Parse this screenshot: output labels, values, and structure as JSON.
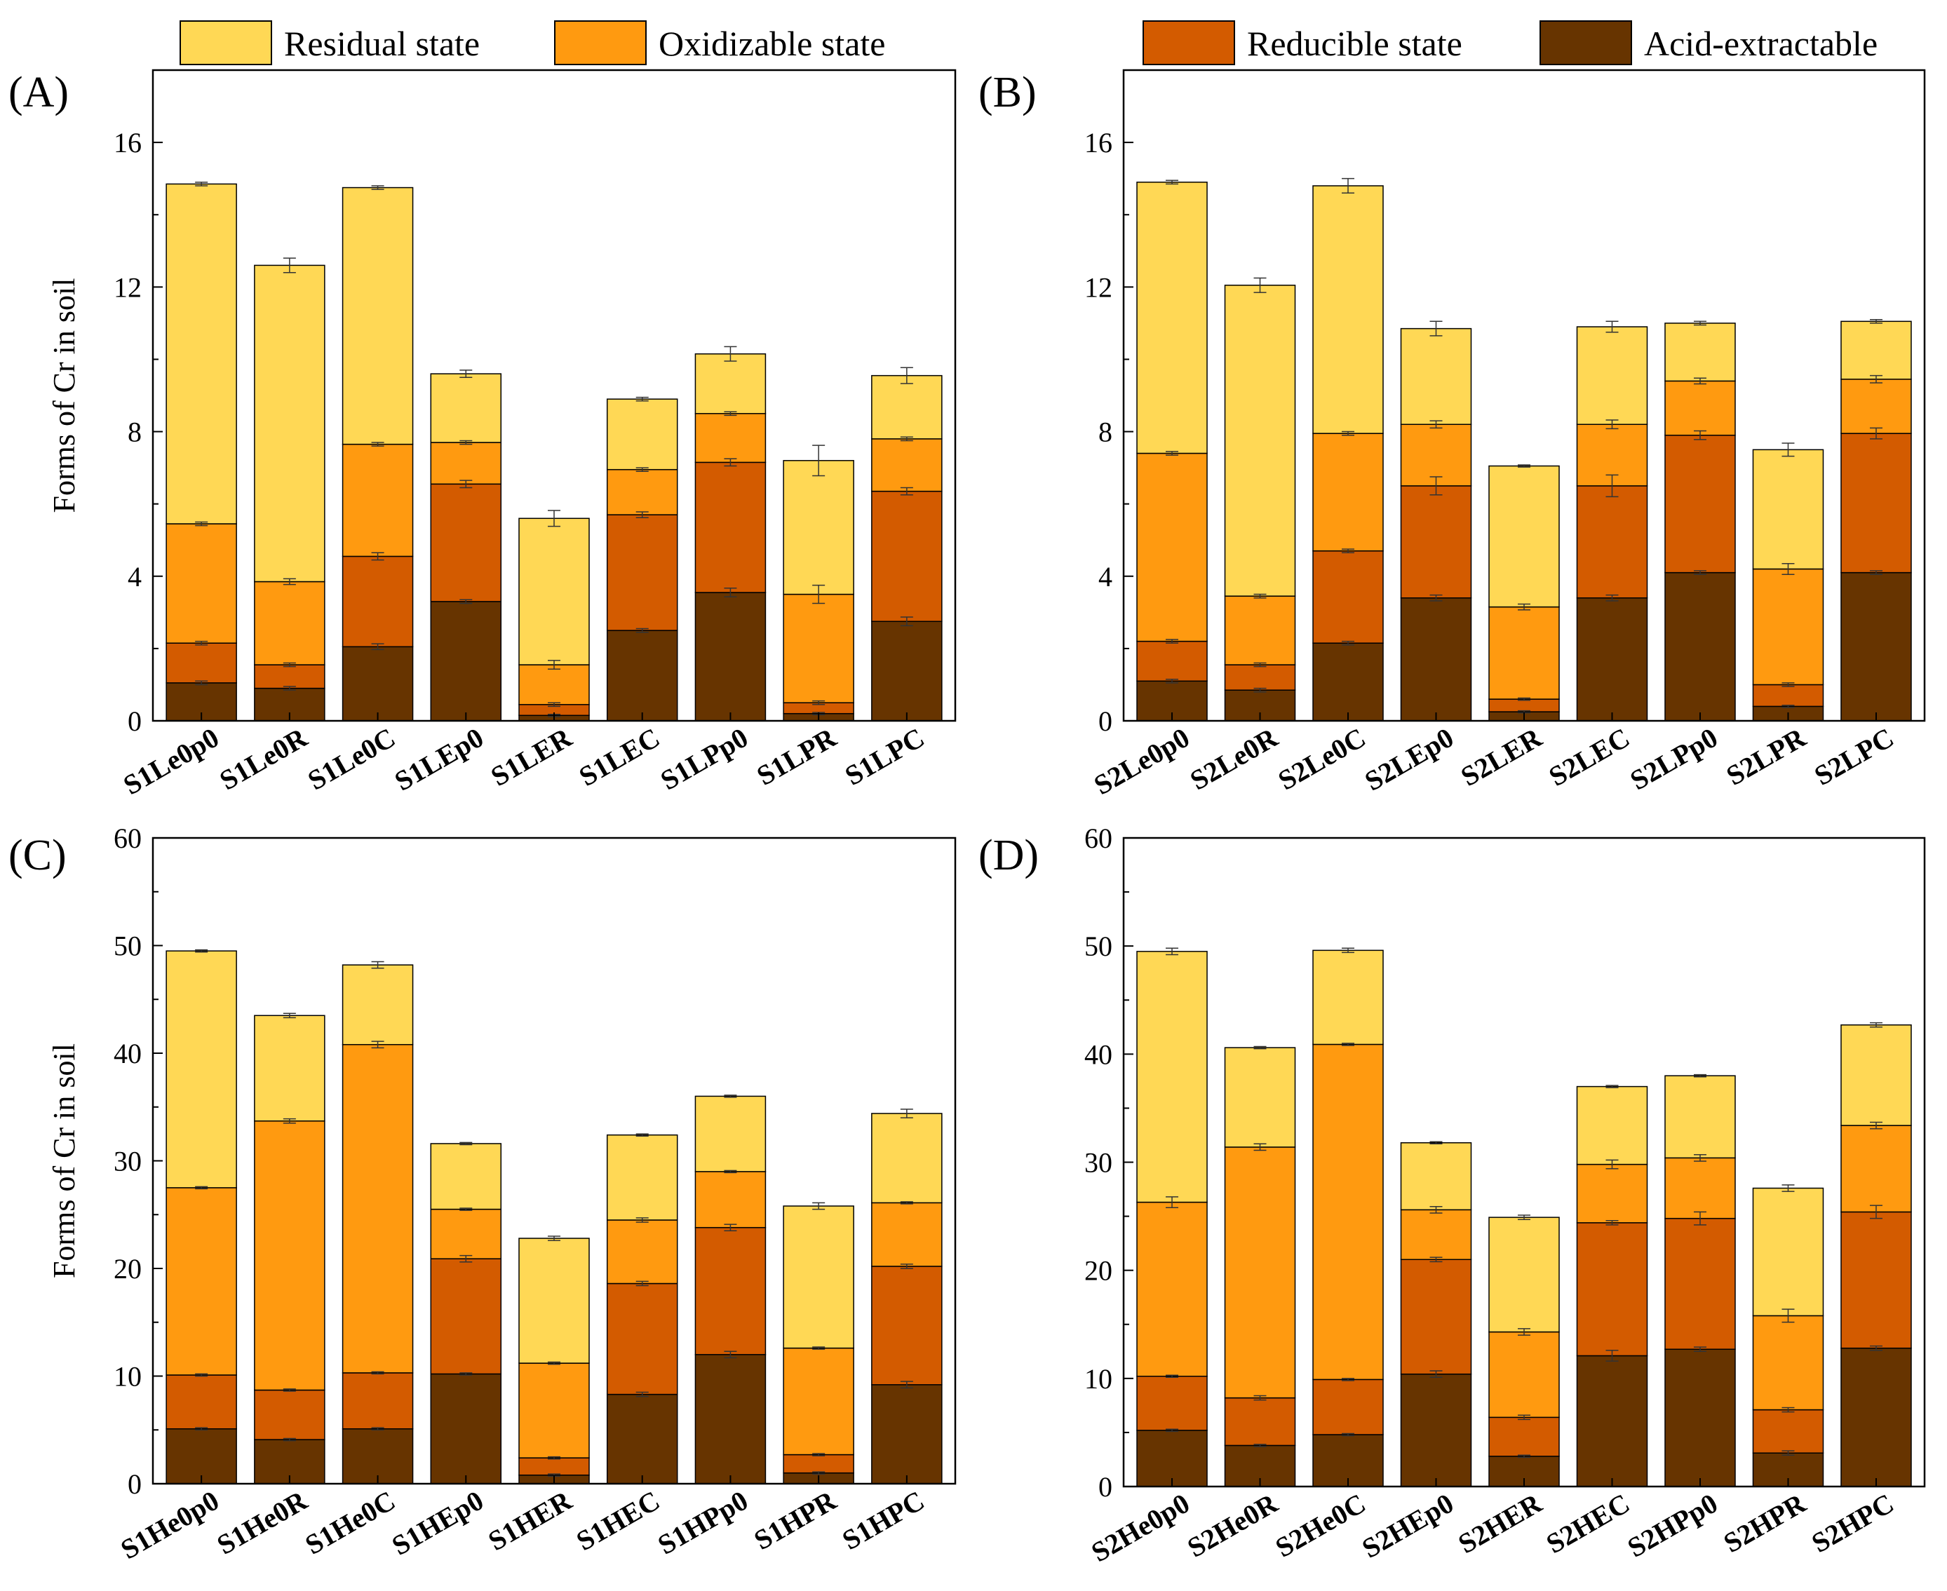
{
  "legend": {
    "items": [
      {
        "label": "Residual state",
        "color": "#FFD855"
      },
      {
        "label": "Oxidizable state",
        "color": "#FF9A10"
      },
      {
        "label": "Reducible state",
        "color": "#D35B00"
      },
      {
        "label": "Acid-extractable",
        "color": "#673400"
      }
    ]
  },
  "chart_data": [
    {
      "type": "bar",
      "stacked": true,
      "panel_label": "(A)",
      "ylabel": "Forms of Cr in soil",
      "ylim": [
        0,
        18
      ],
      "yticks": [
        0,
        4,
        8,
        12,
        16
      ],
      "categories": [
        "S1Le0p0",
        "S1Le0R",
        "S1Le0C",
        "S1LEp0",
        "S1LER",
        "S1LEC",
        "S1LPp0",
        "S1LPR",
        "S1LPC"
      ],
      "series": [
        {
          "name": "Acid-extractable",
          "values": [
            1.05,
            0.9,
            2.05,
            3.3,
            0.15,
            2.5,
            3.55,
            0.2,
            2.75
          ],
          "errors": [
            0.05,
            0.05,
            0.08,
            0.05,
            0.03,
            0.05,
            0.12,
            0.03,
            0.12
          ]
        },
        {
          "name": "Reducible state",
          "values": [
            1.1,
            0.65,
            2.5,
            3.25,
            0.3,
            3.2,
            3.6,
            0.3,
            3.6
          ],
          "errors": [
            0.05,
            0.05,
            0.1,
            0.1,
            0.05,
            0.08,
            0.1,
            0.05,
            0.1
          ]
        },
        {
          "name": "Oxidizable state",
          "values": [
            3.3,
            2.3,
            3.1,
            1.15,
            1.1,
            1.25,
            1.35,
            3.0,
            1.45
          ],
          "errors": [
            0.05,
            0.08,
            0.05,
            0.05,
            0.12,
            0.05,
            0.05,
            0.25,
            0.05
          ]
        },
        {
          "name": "Residual state",
          "values": [
            9.4,
            8.75,
            7.1,
            1.9,
            4.05,
            1.95,
            1.65,
            3.7,
            1.75
          ],
          "errors": [
            0.05,
            0.2,
            0.05,
            0.1,
            0.22,
            0.05,
            0.2,
            0.42,
            0.22
          ]
        }
      ]
    },
    {
      "type": "bar",
      "stacked": true,
      "panel_label": "(B)",
      "ylabel": "",
      "ylim": [
        0,
        18
      ],
      "yticks": [
        0,
        4,
        8,
        12,
        16
      ],
      "categories": [
        "S2Le0p0",
        "S2Le0R",
        "S2Le0C",
        "S2LEp0",
        "S2LER",
        "S2LEC",
        "S2LPp0",
        "S2LPR",
        "S2LPC"
      ],
      "series": [
        {
          "name": "Acid-extractable",
          "values": [
            1.1,
            0.85,
            2.15,
            3.4,
            0.25,
            3.4,
            4.1,
            0.4,
            4.1
          ],
          "errors": [
            0.05,
            0.05,
            0.05,
            0.08,
            0.03,
            0.08,
            0.05,
            0.03,
            0.05
          ]
        },
        {
          "name": "Reducible state",
          "values": [
            1.1,
            0.7,
            2.55,
            3.1,
            0.35,
            3.1,
            3.8,
            0.6,
            3.85
          ],
          "errors": [
            0.05,
            0.05,
            0.05,
            0.25,
            0.03,
            0.3,
            0.12,
            0.05,
            0.15
          ]
        },
        {
          "name": "Oxidizable state",
          "values": [
            5.2,
            1.9,
            3.25,
            1.7,
            2.55,
            1.7,
            1.5,
            3.2,
            1.5
          ],
          "errors": [
            0.05,
            0.05,
            0.05,
            0.1,
            0.08,
            0.12,
            0.08,
            0.15,
            0.1
          ]
        },
        {
          "name": "Residual state",
          "values": [
            7.5,
            8.6,
            6.85,
            2.65,
            3.9,
            2.7,
            1.6,
            3.3,
            1.6
          ],
          "errors": [
            0.05,
            0.2,
            0.2,
            0.2,
            0.03,
            0.15,
            0.05,
            0.18,
            0.05
          ]
        }
      ]
    },
    {
      "type": "bar",
      "stacked": true,
      "panel_label": "(C)",
      "ylabel": "Forms of Cr in soil",
      "ylim": [
        0,
        60
      ],
      "yticks": [
        0,
        10,
        20,
        30,
        40,
        50,
        60
      ],
      "categories": [
        "S1He0p0",
        "S1He0R",
        "S1He0C",
        "S1HEp0",
        "S1HER",
        "S1HEC",
        "S1HPp0",
        "S1HPR",
        "S1HPC"
      ],
      "series": [
        {
          "name": "Acid-extractable",
          "values": [
            5.1,
            4.1,
            5.1,
            10.2,
            0.8,
            8.3,
            12.0,
            1.0,
            9.2
          ],
          "errors": [
            0.1,
            0.1,
            0.1,
            0.1,
            0.1,
            0.2,
            0.3,
            0.1,
            0.3
          ]
        },
        {
          "name": "Reducible state",
          "values": [
            5.0,
            4.6,
            5.2,
            10.7,
            1.6,
            10.3,
            11.8,
            1.7,
            11.0
          ],
          "errors": [
            0.1,
            0.1,
            0.1,
            0.3,
            0.1,
            0.2,
            0.3,
            0.1,
            0.2
          ]
        },
        {
          "name": "Oxidizable state",
          "values": [
            17.4,
            25.0,
            30.5,
            4.6,
            8.8,
            5.9,
            5.2,
            9.9,
            5.9
          ],
          "errors": [
            0.1,
            0.2,
            0.3,
            0.1,
            0.1,
            0.2,
            0.1,
            0.1,
            0.1
          ]
        },
        {
          "name": "Residual state",
          "values": [
            22.0,
            9.8,
            7.4,
            6.1,
            11.6,
            7.9,
            7.0,
            13.2,
            8.3
          ],
          "errors": [
            0.1,
            0.2,
            0.3,
            0.1,
            0.2,
            0.1,
            0.1,
            0.3,
            0.4
          ]
        }
      ]
    },
    {
      "type": "bar",
      "stacked": true,
      "panel_label": "(D)",
      "ylabel": "",
      "ylim": [
        0,
        60
      ],
      "yticks": [
        0,
        10,
        20,
        30,
        40,
        50,
        60
      ],
      "categories": [
        "S2He0p0",
        "S2He0R",
        "S2He0C",
        "S2HEp0",
        "S2HER",
        "S2HEC",
        "S2HPp0",
        "S2HPR",
        "S2HPC"
      ],
      "series": [
        {
          "name": "Acid-extractable",
          "values": [
            5.2,
            3.8,
            4.8,
            10.4,
            2.8,
            12.1,
            12.7,
            3.1,
            12.8
          ],
          "errors": [
            0.1,
            0.1,
            0.1,
            0.3,
            0.1,
            0.5,
            0.2,
            0.2,
            0.2
          ]
        },
        {
          "name": "Reducible state",
          "values": [
            5.0,
            4.4,
            5.1,
            10.6,
            3.6,
            12.3,
            12.1,
            4.0,
            12.6
          ],
          "errors": [
            0.1,
            0.2,
            0.1,
            0.2,
            0.2,
            0.2,
            0.6,
            0.2,
            0.6
          ]
        },
        {
          "name": "Oxidizable state",
          "values": [
            16.1,
            23.2,
            31.0,
            4.6,
            7.9,
            5.4,
            5.6,
            8.7,
            8.0
          ],
          "errors": [
            0.5,
            0.3,
            0.1,
            0.3,
            0.3,
            0.4,
            0.3,
            0.6,
            0.3
          ]
        },
        {
          "name": "Residual state",
          "values": [
            23.2,
            9.2,
            8.7,
            6.2,
            10.6,
            7.2,
            7.6,
            11.8,
            9.3
          ],
          "errors": [
            0.3,
            0.1,
            0.2,
            0.1,
            0.2,
            0.1,
            0.1,
            0.3,
            0.2
          ]
        }
      ]
    }
  ]
}
